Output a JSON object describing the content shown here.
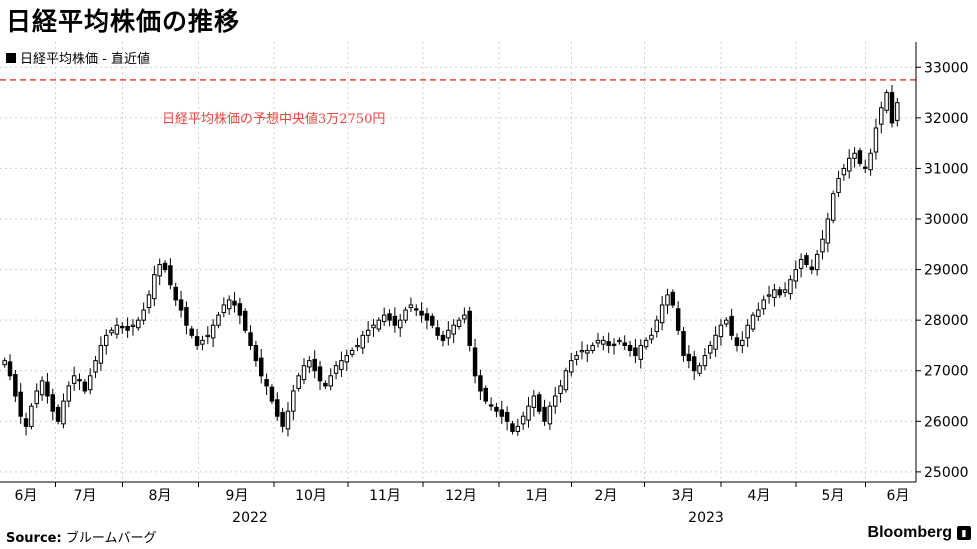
{
  "title": "日経平均株価の推移",
  "source_label": "Source:",
  "source_value": "ブルームバーグ",
  "brand": "Bloomberg",
  "brand_icon": "bloomberg-terminal-icon",
  "chart_data": {
    "type": "candlestick",
    "legend": "日経平均株価 - 直近値",
    "annotation": "日経平均株価の予想中央値3万2750円",
    "reference_line": {
      "value": 32750,
      "color": "#e8463f",
      "style": "dashed"
    },
    "ylim": [
      24800,
      33500
    ],
    "yticks": [
      25000,
      26000,
      27000,
      28000,
      29000,
      30000,
      31000,
      32000,
      33000
    ],
    "month_labels": [
      "6月",
      "7月",
      "8月",
      "9月",
      "10月",
      "11月",
      "12月",
      "1月",
      "2月",
      "3月",
      "4月",
      "5月",
      "6月"
    ],
    "year_labels": [
      "2022",
      "2023"
    ],
    "grid": true,
    "legend_position": "top-left",
    "close_series": [
      27200,
      26900,
      26500,
      26100,
      25900,
      26300,
      26600,
      26800,
      26500,
      26200,
      26000,
      26400,
      26700,
      26900,
      26800,
      26600,
      26900,
      27200,
      27500,
      27700,
      27800,
      27900,
      27850,
      27800,
      27900,
      28000,
      28200,
      28500,
      28900,
      29100,
      29000,
      28700,
      28400,
      28200,
      27900,
      27700,
      27500,
      27600,
      27700,
      27900,
      28100,
      28300,
      28400,
      28300,
      28100,
      27800,
      27500,
      27200,
      26900,
      26700,
      26400,
      26100,
      25900,
      26200,
      26600,
      26900,
      27100,
      27200,
      27000,
      26800,
      26700,
      26900,
      27100,
      27200,
      27300,
      27400,
      27500,
      27700,
      27800,
      27900,
      28000,
      28100,
      28000,
      27900,
      28000,
      28200,
      28300,
      28200,
      28100,
      28000,
      27900,
      27700,
      27600,
      27800,
      27900,
      28000,
      28100,
      27500,
      26900,
      26600,
      26400,
      26300,
      26200,
      26100,
      26000,
      25800,
      25900,
      26100,
      26300,
      26500,
      26200,
      26000,
      26300,
      26500,
      26700,
      27000,
      27200,
      27300,
      27400,
      27400,
      27500,
      27600,
      27600,
      27500,
      27500,
      27600,
      27500,
      27400,
      27300,
      27500,
      27600,
      27700,
      28000,
      28300,
      28500,
      28300,
      27800,
      27300,
      27200,
      27000,
      27100,
      27300,
      27500,
      27700,
      27900,
      28000,
      27700,
      27500,
      27600,
      27900,
      28100,
      28200,
      28400,
      28500,
      28600,
      28500,
      28600,
      28800,
      29000,
      29200,
      29100,
      29000,
      29300,
      29600,
      30000,
      30500,
      30800,
      31000,
      31200,
      31300,
      31100,
      31000,
      31300,
      31800,
      32200,
      32500,
      31900,
      32300
    ]
  }
}
